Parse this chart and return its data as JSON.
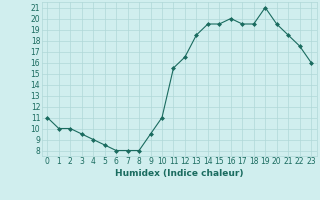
{
  "x": [
    0,
    1,
    2,
    3,
    4,
    5,
    6,
    7,
    8,
    9,
    10,
    11,
    12,
    13,
    14,
    15,
    16,
    17,
    18,
    19,
    20,
    21,
    22,
    23
  ],
  "y": [
    11,
    10,
    10,
    9.5,
    9,
    8.5,
    8,
    8,
    8,
    9.5,
    11,
    15.5,
    16.5,
    18.5,
    19.5,
    19.5,
    20,
    19.5,
    19.5,
    21,
    19.5,
    18.5,
    17.5,
    16
  ],
  "xlabel": "Humidex (Indice chaleur)",
  "ylim_min": 7.5,
  "ylim_max": 21.5,
  "xlim_min": -0.5,
  "xlim_max": 23.5,
  "yticks": [
    8,
    9,
    10,
    11,
    12,
    13,
    14,
    15,
    16,
    17,
    18,
    19,
    20,
    21
  ],
  "xticks": [
    0,
    1,
    2,
    3,
    4,
    5,
    6,
    7,
    8,
    9,
    10,
    11,
    12,
    13,
    14,
    15,
    16,
    17,
    18,
    19,
    20,
    21,
    22,
    23
  ],
  "line_color": "#1a6b5f",
  "marker_color": "#1a6b5f",
  "bg_color": "#d0eeee",
  "grid_color": "#b0d8d8",
  "font_color": "#1a6b5f",
  "xlabel_fontsize": 6.5,
  "tick_fontsize": 5.5
}
